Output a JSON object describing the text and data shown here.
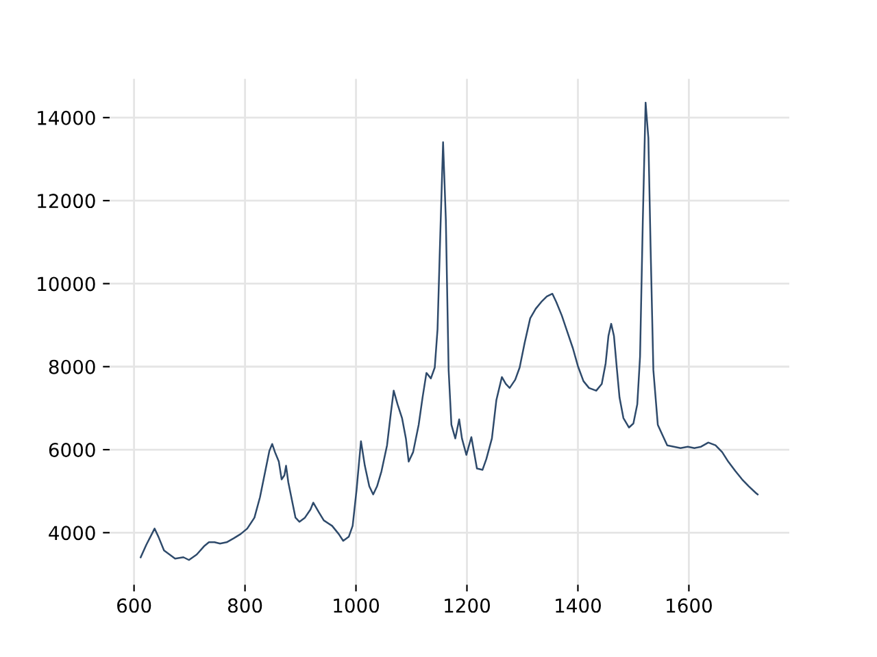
{
  "chart_data": {
    "type": "line",
    "xlim": [
      556,
      1781
    ],
    "ylim": [
      2746,
      14934
    ],
    "xticks": [
      600,
      800,
      1000,
      1200,
      1400,
      1600
    ],
    "yticks": [
      4000,
      6000,
      8000,
      10000,
      12000,
      14000
    ],
    "grid": true,
    "marker": "none",
    "line_style": "solid",
    "series": [
      {
        "color": "#2e4a6b",
        "x": [
          612,
          622,
          632,
          637,
          644,
          654,
          664,
          674,
          689,
          699,
          713,
          726,
          735,
          745,
          755,
          767,
          780,
          792,
          804,
          817,
          827,
          836,
          844,
          849,
          854,
          861,
          866,
          871,
          874,
          878,
          886,
          891,
          898,
          908,
          918,
          923,
          933,
          942,
          957,
          969,
          977,
          987,
          994,
          1001,
          1009,
          1016,
          1024,
          1031,
          1038,
          1046,
          1056,
          1063,
          1068,
          1075,
          1083,
          1090,
          1095,
          1103,
          1113,
          1120,
          1127,
          1135,
          1142,
          1147,
          1152,
          1157,
          1162,
          1167,
          1172,
          1179,
          1186,
          1191,
          1199,
          1208,
          1218,
          1228,
          1235,
          1245,
          1253,
          1263,
          1270,
          1277,
          1287,
          1295,
          1304,
          1314,
          1324,
          1334,
          1344,
          1354,
          1361,
          1371,
          1381,
          1391,
          1400,
          1410,
          1420,
          1433,
          1443,
          1450,
          1455,
          1460,
          1465,
          1470,
          1475,
          1482,
          1492,
          1500,
          1507,
          1512,
          1517,
          1522,
          1527,
          1531,
          1536,
          1544,
          1553,
          1561,
          1573,
          1585,
          1598,
          1610,
          1622,
          1635,
          1648,
          1660,
          1671,
          1684,
          1696,
          1708,
          1721,
          1724
        ],
        "values": [
          3408,
          3704,
          3967,
          4099,
          3901,
          3572,
          3474,
          3375,
          3408,
          3342,
          3474,
          3671,
          3770,
          3770,
          3737,
          3770,
          3868,
          3967,
          4099,
          4362,
          4855,
          5447,
          5974,
          6138,
          5941,
          5711,
          5283,
          5382,
          5612,
          5217,
          4691,
          4362,
          4263,
          4362,
          4559,
          4724,
          4493,
          4296,
          4164,
          3967,
          3803,
          3901,
          4164,
          5020,
          6204,
          5612,
          5118,
          4921,
          5118,
          5480,
          6105,
          6895,
          7421,
          7092,
          6763,
          6270,
          5711,
          5941,
          6599,
          7257,
          7849,
          7717,
          7980,
          8901,
          11204,
          13408,
          11533,
          7915,
          6599,
          6270,
          6730,
          6270,
          5875,
          6303,
          5546,
          5513,
          5776,
          6270,
          7191,
          7750,
          7585,
          7487,
          7684,
          7980,
          8572,
          9164,
          9395,
          9559,
          9691,
          9757,
          9559,
          9230,
          8836,
          8441,
          8013,
          7651,
          7487,
          7421,
          7585,
          8079,
          8737,
          9033,
          8737,
          7980,
          7257,
          6763,
          6533,
          6632,
          7092,
          8243,
          11533,
          14362,
          13507,
          10875,
          7915,
          6599,
          6336,
          6105,
          6072,
          6039,
          6072,
          6039,
          6072,
          6171,
          6105,
          5941,
          5711,
          5480,
          5283,
          5118,
          4954,
          4921
        ]
      }
    ]
  }
}
